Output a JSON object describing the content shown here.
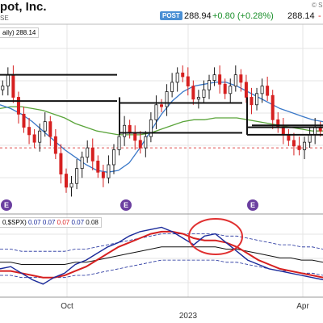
{
  "header": {
    "company": "pot, Inc.",
    "exchange": "SE",
    "watermark": "© S",
    "post_badge": "POST",
    "post_price": "288.94",
    "post_change": "+0.80 (+0.28%)",
    "last_price": "288.14",
    "last_change_partial": "-"
  },
  "price_legend": "aily) 288.14",
  "oscillator_legend": {
    "prefix": "0,$SPX)",
    "v1": "0.07",
    "v2": "0.07",
    "v3": "0.07",
    "v4": "0.07",
    "v5": "0.08"
  },
  "earnings_marker": "E",
  "colors": {
    "candle_up": "#1a1a1a",
    "candle_down": "#d62020",
    "ma_short": "#3a78c8",
    "ma_long": "#5aa43a",
    "support_line": "#111111",
    "ref_dash": "#e05050",
    "osc_line": "#1a2a9a",
    "osc_signal": "#d62020",
    "osc_band": "#1a2a9a",
    "osc_long": "#111111",
    "highlight_circle": "#e03030",
    "grid": "#e4e4e4"
  },
  "chart_data": [
    {
      "type": "candlestick",
      "title": "",
      "x_ticks": [
        "Oct",
        "2023",
        "Apr"
      ],
      "price_range": [
        245,
        345
      ],
      "price_legend_value": 288.14,
      "ma_short": [
        302,
        300,
        297,
        293,
        288,
        283,
        278,
        274,
        270,
        267,
        266,
        267,
        271,
        279,
        288,
        297,
        304,
        309,
        312,
        313,
        314,
        314,
        312,
        309,
        306,
        303,
        300,
        298,
        296,
        294,
        293
      ],
      "ma_long": [
        300,
        301,
        301,
        300,
        299,
        297,
        295,
        292,
        290,
        288,
        287,
        286,
        286,
        286,
        287,
        289,
        291,
        293,
        294,
        294,
        295,
        295,
        295,
        294,
        293,
        292,
        291,
        290,
        289,
        288,
        288
      ],
      "support_levels": [
        318,
        304,
        287,
        303,
        286,
        291,
        290
      ],
      "ref_level": 279,
      "earnings_at": [
        "Aug",
        "Nov",
        "Feb"
      ],
      "closes": [
        312,
        318,
        306,
        297,
        290,
        286,
        282,
        288,
        293,
        285,
        276,
        265,
        258,
        260,
        268,
        274,
        279,
        272,
        266,
        263,
        270,
        278,
        285,
        291,
        287,
        283,
        279,
        285,
        294,
        302,
        301,
        309,
        314,
        319,
        317,
        312,
        305,
        306,
        310,
        315,
        318,
        313,
        308,
        312,
        318,
        314,
        306,
        302,
        308,
        312,
        307,
        294,
        290,
        286,
        283,
        280,
        278,
        282,
        286,
        290,
        288
      ]
    },
    {
      "type": "line",
      "title": "",
      "x_ticks": [
        "Oct",
        "2023",
        "Apr"
      ],
      "legend_values": [
        0.07,
        0.07,
        0.07,
        0.07,
        0.08
      ],
      "series": [
        {
          "values": [
            0.068,
            0.069,
            0.066,
            0.063,
            0.061,
            0.064,
            0.066,
            0.07,
            0.072,
            0.075,
            0.078,
            0.08,
            0.083,
            0.085,
            0.086,
            0.087,
            0.085,
            0.082,
            0.079,
            0.083,
            0.084,
            0.08,
            0.076,
            0.072,
            0.07,
            0.068,
            0.067,
            0.066,
            0.065,
            0.064,
            0.063
          ]
        },
        {
          "values": [
            0.067,
            0.067,
            0.066,
            0.065,
            0.064,
            0.064,
            0.065,
            0.067,
            0.069,
            0.072,
            0.075,
            0.078,
            0.08,
            0.082,
            0.084,
            0.085,
            0.085,
            0.084,
            0.082,
            0.081,
            0.081,
            0.08,
            0.078,
            0.075,
            0.072,
            0.07,
            0.068,
            0.067,
            0.066,
            0.065,
            0.064
          ]
        },
        {
          "values": [
            0.071,
            0.071,
            0.07,
            0.07,
            0.07,
            0.07,
            0.07,
            0.071,
            0.071,
            0.072,
            0.073,
            0.074,
            0.075,
            0.076,
            0.077,
            0.078,
            0.078,
            0.078,
            0.078,
            0.078,
            0.078,
            0.077,
            0.077,
            0.076,
            0.075,
            0.074,
            0.073,
            0.073,
            0.072,
            0.072,
            0.071
          ]
        }
      ]
    }
  ]
}
